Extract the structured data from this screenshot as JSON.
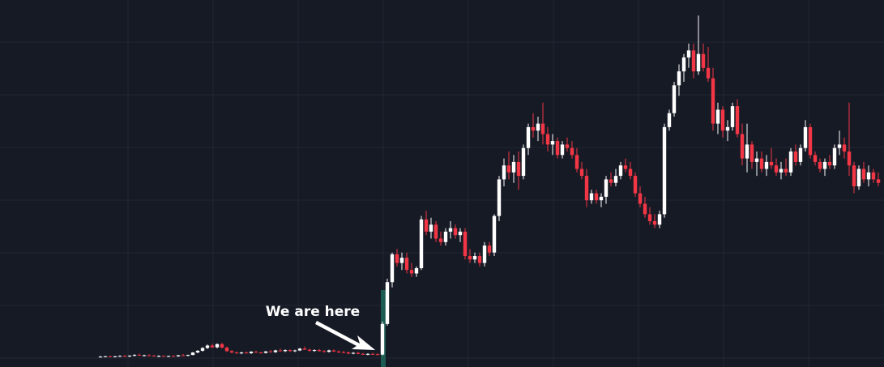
{
  "chart_data": {
    "type": "candlestick",
    "annotation": "We are here",
    "ylim": [
      0,
      100
    ],
    "grid": true,
    "up_color": "#ffffff",
    "down_color": "#f23645",
    "candles": [
      [
        1,
        1.3,
        0.9,
        1.1
      ],
      [
        1.1,
        1.3,
        1,
        1.2
      ],
      [
        1.2,
        1.4,
        1,
        1
      ],
      [
        1,
        1.3,
        0.9,
        1.2
      ],
      [
        1.2,
        1.5,
        1.1,
        1.3
      ],
      [
        1.3,
        1.6,
        1.1,
        1.2
      ],
      [
        1.2,
        1.5,
        1,
        1.4
      ],
      [
        1.4,
        1.8,
        1.2,
        1.6
      ],
      [
        1.6,
        2,
        1.4,
        1.4
      ],
      [
        1.4,
        1.7,
        1.2,
        1.5
      ],
      [
        1.5,
        1.8,
        1.3,
        1.4
      ],
      [
        1.4,
        1.6,
        1.1,
        1.2
      ],
      [
        1.2,
        1.5,
        1,
        1.3
      ],
      [
        1.3,
        1.5,
        1.1,
        1.2
      ],
      [
        1.2,
        1.4,
        1,
        1.3
      ],
      [
        1.3,
        1.5,
        1.1,
        1.2
      ],
      [
        1.2,
        1.6,
        1.1,
        1.5
      ],
      [
        1.5,
        1.9,
        1.3,
        1.4
      ],
      [
        1.4,
        1.7,
        1.2,
        1.6
      ],
      [
        1.6,
        2.4,
        1.5,
        2.3
      ],
      [
        2.3,
        3,
        2.1,
        2.8
      ],
      [
        2.8,
        3.8,
        2.6,
        3.6
      ],
      [
        3.6,
        4.6,
        3.3,
        4.3
      ],
      [
        4.3,
        4.8,
        3.6,
        3.8
      ],
      [
        3.8,
        4.9,
        3.5,
        4.7
      ],
      [
        4.7,
        5.1,
        3.5,
        3.7
      ],
      [
        3.7,
        4,
        2.5,
        2.7
      ],
      [
        2.7,
        3,
        2.1,
        2.3
      ],
      [
        2.3,
        2.6,
        1.9,
        2.1
      ],
      [
        2.1,
        2.5,
        1.8,
        2.3
      ],
      [
        2.3,
        2.6,
        2,
        2.1
      ],
      [
        2.1,
        2.7,
        1.9,
        2.5
      ],
      [
        2.5,
        2.8,
        2.2,
        2.3
      ],
      [
        2.3,
        2.5,
        2,
        2.2
      ],
      [
        2.2,
        2.7,
        2,
        2.6
      ],
      [
        2.6,
        3,
        2.3,
        2.4
      ],
      [
        2.4,
        3.1,
        2.2,
        2.9
      ],
      [
        2.9,
        3.4,
        2.6,
        2.7
      ],
      [
        2.7,
        3.2,
        2.4,
        3
      ],
      [
        3,
        3.2,
        2.5,
        2.7
      ],
      [
        2.7,
        3.1,
        2.4,
        2.9
      ],
      [
        2.9,
        3.6,
        2.7,
        3.4
      ],
      [
        3.4,
        4,
        3.1,
        3.1
      ],
      [
        3.1,
        3.4,
        2.5,
        2.8
      ],
      [
        2.8,
        3.2,
        2.5,
        3
      ],
      [
        3,
        3.3,
        2.6,
        2.7
      ],
      [
        2.7,
        3,
        2.3,
        2.5
      ],
      [
        2.5,
        3.1,
        2.3,
        2.9
      ],
      [
        2.9,
        3.2,
        2.4,
        2.6
      ],
      [
        2.6,
        2.9,
        2.1,
        2.4
      ],
      [
        2.4,
        2.8,
        2.1,
        2.3
      ],
      [
        2.3,
        2.6,
        1.8,
        2
      ],
      [
        2,
        2.4,
        1.8,
        2.2
      ],
      [
        2.2,
        2.5,
        1.8,
        1.9
      ],
      [
        1.9,
        2.2,
        1.6,
        1.8
      ],
      [
        1.8,
        2.1,
        1.5,
        1.9
      ],
      [
        1.9,
        2.2,
        1.6,
        1.8
      ],
      [
        1.8,
        2.1,
        1.5,
        1.7
      ],
      [
        1.7,
        11.2,
        1.5,
        10.5
      ],
      [
        10.5,
        23.5,
        10,
        22.5
      ],
      [
        22.5,
        31,
        21,
        30.5
      ],
      [
        30.5,
        32,
        27,
        28
      ],
      [
        28,
        31,
        26,
        29.5
      ],
      [
        29.5,
        31,
        25,
        26
      ],
      [
        26,
        28,
        24,
        25
      ],
      [
        25,
        27,
        24,
        26.5
      ],
      [
        26.5,
        41.5,
        26,
        40.5
      ],
      [
        40.5,
        43,
        36,
        37
      ],
      [
        37,
        41,
        35,
        39
      ],
      [
        39,
        40,
        34,
        35
      ],
      [
        35,
        37,
        33,
        34
      ],
      [
        34,
        38,
        33,
        37
      ],
      [
        37,
        40,
        35,
        38
      ],
      [
        38,
        39,
        35,
        36
      ],
      [
        36,
        38,
        34,
        37
      ],
      [
        37,
        38,
        29,
        30
      ],
      [
        30,
        32,
        28,
        29
      ],
      [
        29,
        31,
        28,
        30
      ],
      [
        30,
        31,
        27,
        28
      ],
      [
        28,
        34,
        27,
        33
      ],
      [
        33,
        34,
        30,
        31
      ],
      [
        31,
        42,
        30,
        41.5
      ],
      [
        41.5,
        53,
        40,
        52
      ],
      [
        52,
        58,
        50,
        56
      ],
      [
        56,
        60,
        52,
        54
      ],
      [
        54,
        59,
        51,
        57
      ],
      [
        57,
        60,
        49,
        53
      ],
      [
        53,
        62,
        52,
        61
      ],
      [
        61,
        68,
        59,
        67
      ],
      [
        67,
        71,
        64,
        66
      ],
      [
        66,
        70,
        63,
        68
      ],
      [
        68,
        74,
        62,
        65
      ],
      [
        65,
        67,
        60,
        62
      ],
      [
        62,
        65,
        59,
        63
      ],
      [
        63,
        64,
        58,
        59
      ],
      [
        59,
        63,
        58,
        62
      ],
      [
        62,
        64,
        60,
        61
      ],
      [
        61,
        63,
        58,
        59
      ],
      [
        59,
        61,
        54,
        55
      ],
      [
        55,
        57,
        52,
        53
      ],
      [
        53,
        55,
        44,
        46
      ],
      [
        46,
        49,
        45,
        48
      ],
      [
        48,
        49,
        45,
        46
      ],
      [
        46,
        48,
        44,
        47
      ],
      [
        47,
        53,
        45,
        52
      ],
      [
        52,
        54,
        50,
        51
      ],
      [
        51,
        55,
        50,
        53
      ],
      [
        53,
        57,
        52,
        56
      ],
      [
        56,
        58,
        54,
        55
      ],
      [
        55,
        57,
        52,
        53
      ],
      [
        53,
        54,
        47,
        48
      ],
      [
        48,
        50,
        44,
        45
      ],
      [
        45,
        47,
        41,
        42
      ],
      [
        42,
        44,
        39,
        40
      ],
      [
        40,
        42,
        38,
        39
      ],
      [
        39,
        43,
        38,
        42
      ],
      [
        42,
        68,
        41,
        67
      ],
      [
        67,
        72,
        66,
        71
      ],
      [
        71,
        80,
        70,
        79
      ],
      [
        79,
        85,
        76,
        83
      ],
      [
        83,
        88,
        80,
        87
      ],
      [
        87,
        91,
        84,
        89
      ],
      [
        89,
        91,
        81,
        83
      ],
      [
        83,
        99,
        82,
        88
      ],
      [
        88,
        91,
        83,
        84
      ],
      [
        84,
        90,
        80,
        81
      ],
      [
        81,
        84,
        66,
        68
      ],
      [
        68,
        74,
        65,
        72
      ],
      [
        72,
        73,
        64,
        66
      ],
      [
        66,
        69,
        63,
        67
      ],
      [
        67,
        74,
        66,
        73
      ],
      [
        73,
        75,
        64,
        65
      ],
      [
        65,
        68,
        56,
        58
      ],
      [
        58,
        68,
        54,
        62
      ],
      [
        62,
        63,
        55,
        57
      ],
      [
        57,
        60,
        53,
        58
      ],
      [
        58,
        60,
        54,
        55
      ],
      [
        55,
        59,
        53,
        57
      ],
      [
        57,
        61,
        55,
        56
      ],
      [
        56,
        58,
        53,
        54
      ],
      [
        54,
        57,
        52,
        55
      ],
      [
        55,
        58,
        53,
        54
      ],
      [
        54,
        61,
        53,
        60
      ],
      [
        60,
        62,
        56,
        57
      ],
      [
        57,
        62,
        56,
        61
      ],
      [
        61,
        69,
        60,
        67
      ],
      [
        67,
        68,
        58,
        59
      ],
      [
        59,
        60,
        56,
        57
      ],
      [
        57,
        58,
        54,
        55
      ],
      [
        55,
        58,
        53,
        57
      ],
      [
        57,
        59,
        55,
        56
      ],
      [
        56,
        62,
        55,
        61
      ],
      [
        61,
        66,
        59,
        62
      ],
      [
        62,
        64,
        58,
        60
      ],
      [
        60,
        74,
        53,
        56
      ],
      [
        56,
        57,
        48,
        50
      ],
      [
        50,
        56,
        49,
        55
      ],
      [
        55,
        57,
        51,
        52
      ],
      [
        52,
        56,
        50,
        54
      ],
      [
        54,
        55,
        51,
        52
      ],
      [
        52,
        54,
        50,
        51
      ]
    ]
  }
}
